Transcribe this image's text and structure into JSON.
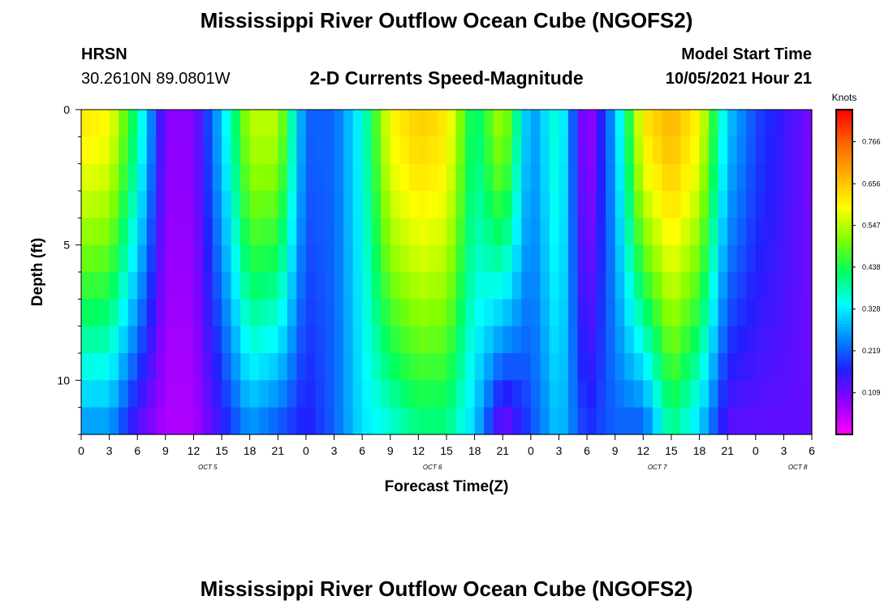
{
  "header": {
    "title": "Mississippi River Outflow Ocean Cube (NGOFS2)",
    "station_code": "HRSN",
    "coordinates": "30.2610N  89.0801W",
    "subtitle": "2-D Currents Speed-Magnitude",
    "model_start_label": "Model Start Time",
    "model_start_value": "10/05/2021 Hour 21"
  },
  "footer": {
    "title": "Mississippi River Outflow Ocean Cube (NGOFS2)"
  },
  "chart_data": {
    "type": "heatmap",
    "title": "2-D Currents Speed-Magnitude",
    "xlabel": "Forecast Time(Z)",
    "ylabel": "Depth (ft)",
    "x_ticks": [
      "0",
      "3",
      "6",
      "9",
      "12",
      "15",
      "18",
      "21",
      "0",
      "3",
      "6",
      "9",
      "12",
      "15",
      "18",
      "21",
      "0",
      "3",
      "6",
      "9",
      "12",
      "15",
      "18",
      "21",
      "0",
      "3",
      "6"
    ],
    "date_labels": [
      {
        "label": "OCT 5",
        "tick_index": 4
      },
      {
        "label": "OCT 6",
        "tick_index": 12
      },
      {
        "label": "OCT 7",
        "tick_index": 20
      },
      {
        "label": "OCT 8",
        "tick_index": 25
      }
    ],
    "y_ticks": [
      "0",
      "5",
      "10"
    ],
    "ylim": [
      0,
      12
    ],
    "colorbar": {
      "unit": "Knots",
      "ticks": [
        "0.766",
        "0.656",
        "0.547",
        "0.438",
        "0.328",
        "0.219",
        "0.109"
      ],
      "range": [
        0,
        0.85
      ],
      "colors": [
        "#ff00ff",
        "#9000ff",
        "#2020ff",
        "#0090ff",
        "#00ffff",
        "#00ff60",
        "#80ff00",
        "#ffff00",
        "#ffb000",
        "#ff6000",
        "#ff0000"
      ]
    },
    "grid": false,
    "legend": "right (colorbar)"
  },
  "heatmap": {
    "time_keys": [
      0,
      1,
      2,
      3,
      4,
      5,
      6,
      7,
      8,
      9,
      10,
      11,
      12,
      13,
      14,
      15,
      16,
      17,
      18,
      19,
      20,
      21,
      22,
      23,
      24,
      25,
      26
    ],
    "surface_speed": [
      0.62,
      0.6,
      0.4,
      0.09,
      0.09,
      0.3,
      0.55,
      0.55,
      0.22,
      0.22,
      0.35,
      0.6,
      0.65,
      0.62,
      0.4,
      0.55,
      0.25,
      0.38,
      0.05,
      0.28,
      0.62,
      0.68,
      0.6,
      0.3,
      0.2,
      0.15,
      0.1
    ],
    "bottom_speed": [
      0.25,
      0.25,
      0.12,
      0.06,
      0.06,
      0.15,
      0.25,
      0.2,
      0.16,
      0.22,
      0.32,
      0.35,
      0.4,
      0.4,
      0.3,
      0.08,
      0.2,
      0.3,
      0.18,
      0.22,
      0.2,
      0.4,
      0.3,
      0.12,
      0.12,
      0.12,
      0.12
    ]
  }
}
